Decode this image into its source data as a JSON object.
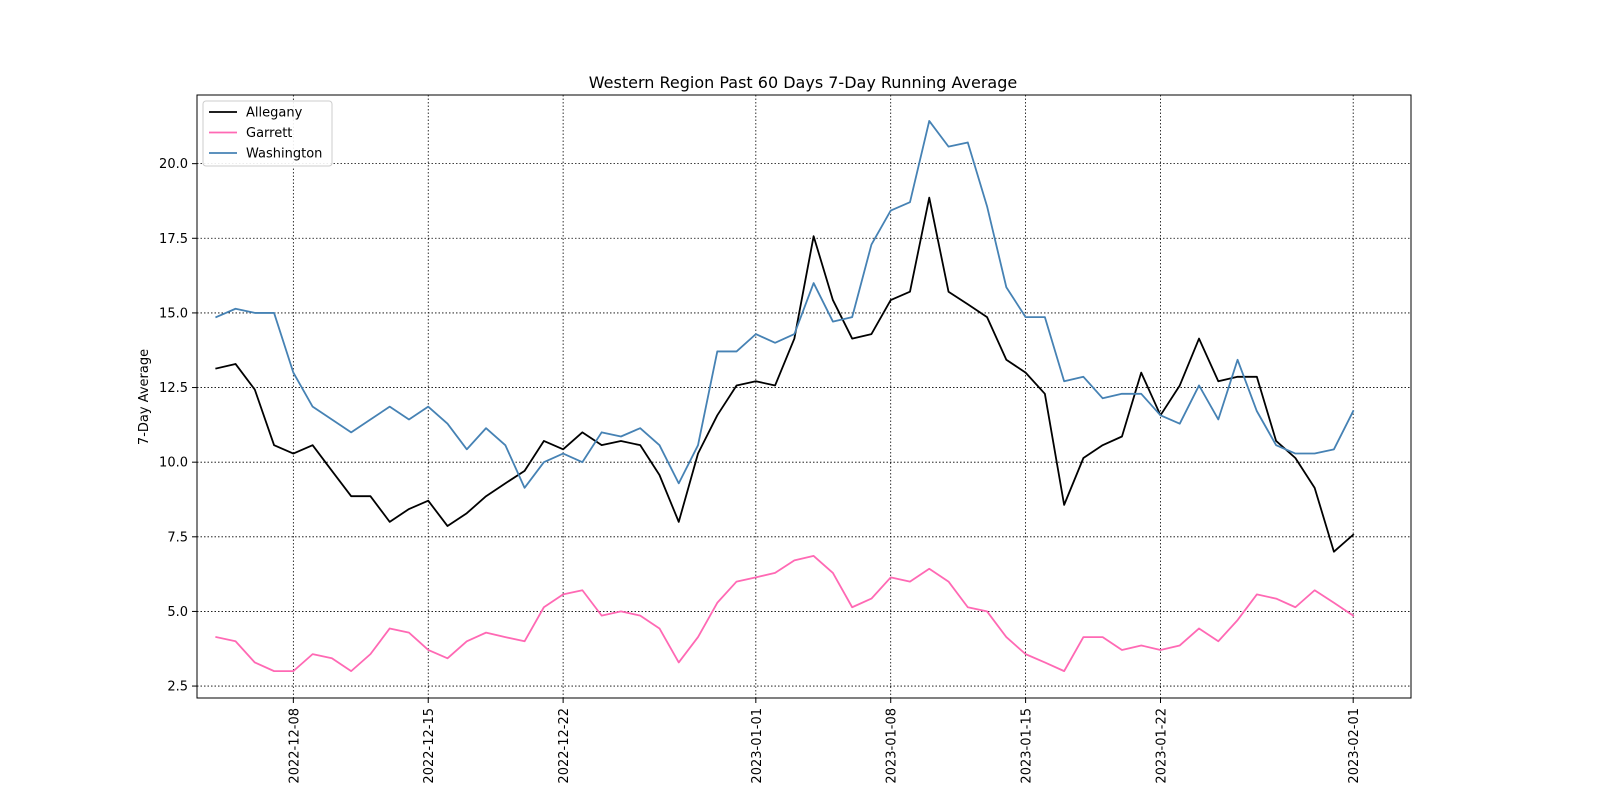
{
  "chart_data": {
    "type": "line",
    "title": "Western Region Past 60 Days 7-Day Running Average",
    "xlabel": "",
    "ylabel": "7-Day Average",
    "x_start": "2022-12-04",
    "x_step_days": 1,
    "xlim": [
      "2022-12-03",
      "2023-02-04"
    ],
    "ylim": [
      2.1,
      22.3
    ],
    "xticks": [
      "2022-12-08",
      "2022-12-15",
      "2022-12-22",
      "2023-01-01",
      "2023-01-08",
      "2023-01-15",
      "2023-01-22",
      "2023-02-01"
    ],
    "yticks": [
      "2.5",
      "5.0",
      "7.5",
      "10.0",
      "12.5",
      "15.0",
      "17.5",
      "20.0"
    ],
    "grid": true,
    "legend_position": "top-left",
    "series": [
      {
        "name": "Allegany",
        "color": "#000000",
        "values": [
          13.14,
          13.29,
          12.43,
          10.57,
          10.29,
          10.57,
          9.71,
          8.86,
          8.86,
          8.0,
          8.43,
          8.71,
          7.86,
          8.29,
          8.86,
          9.29,
          9.71,
          10.71,
          10.43,
          11.0,
          10.57,
          10.71,
          10.57,
          9.57,
          8.0,
          10.29,
          11.57,
          12.57,
          12.71,
          12.57,
          14.14,
          17.57,
          15.43,
          14.14,
          14.29,
          15.43,
          15.71,
          18.86,
          15.71,
          15.29,
          14.86,
          13.43,
          13.0,
          12.29,
          8.57,
          10.14,
          10.57,
          10.86,
          13.0,
          11.57,
          12.57,
          14.14,
          12.71,
          12.86,
          12.86,
          10.71,
          10.14,
          9.14,
          7.0,
          7.57
        ]
      },
      {
        "name": "Garrett",
        "color": "#ff69b4",
        "values": [
          4.14,
          4.0,
          3.29,
          3.0,
          3.0,
          3.57,
          3.43,
          3.0,
          3.57,
          4.43,
          4.29,
          3.71,
          3.43,
          4.0,
          4.29,
          4.14,
          4.0,
          5.14,
          5.57,
          5.71,
          4.86,
          5.0,
          4.86,
          4.43,
          3.29,
          4.14,
          5.29,
          6.0,
          6.14,
          6.29,
          6.71,
          6.86,
          6.29,
          5.14,
          5.43,
          6.14,
          6.0,
          6.43,
          6.0,
          5.14,
          5.0,
          4.14,
          3.57,
          3.29,
          3.0,
          4.14,
          4.14,
          3.71,
          3.86,
          3.71,
          3.86,
          4.43,
          4.0,
          4.71,
          5.57,
          5.43,
          5.14,
          5.71,
          5.29,
          4.86
        ]
      },
      {
        "name": "Washington",
        "color": "#4682b4",
        "values": [
          14.86,
          15.14,
          15.0,
          15.0,
          13.0,
          11.86,
          11.43,
          11.0,
          11.43,
          11.86,
          11.43,
          11.86,
          11.29,
          10.43,
          11.14,
          10.57,
          9.14,
          10.0,
          10.29,
          10.0,
          11.0,
          10.86,
          11.14,
          10.57,
          9.29,
          10.57,
          13.71,
          13.71,
          14.29,
          14.0,
          14.29,
          16.0,
          14.71,
          14.86,
          17.29,
          18.43,
          18.71,
          21.43,
          20.57,
          20.71,
          18.57,
          15.86,
          14.86,
          14.86,
          12.71,
          12.86,
          12.14,
          12.29,
          12.29,
          11.57,
          11.29,
          12.57,
          11.43,
          13.43,
          11.71,
          10.57,
          10.29,
          10.29,
          10.43,
          11.71
        ]
      }
    ]
  }
}
